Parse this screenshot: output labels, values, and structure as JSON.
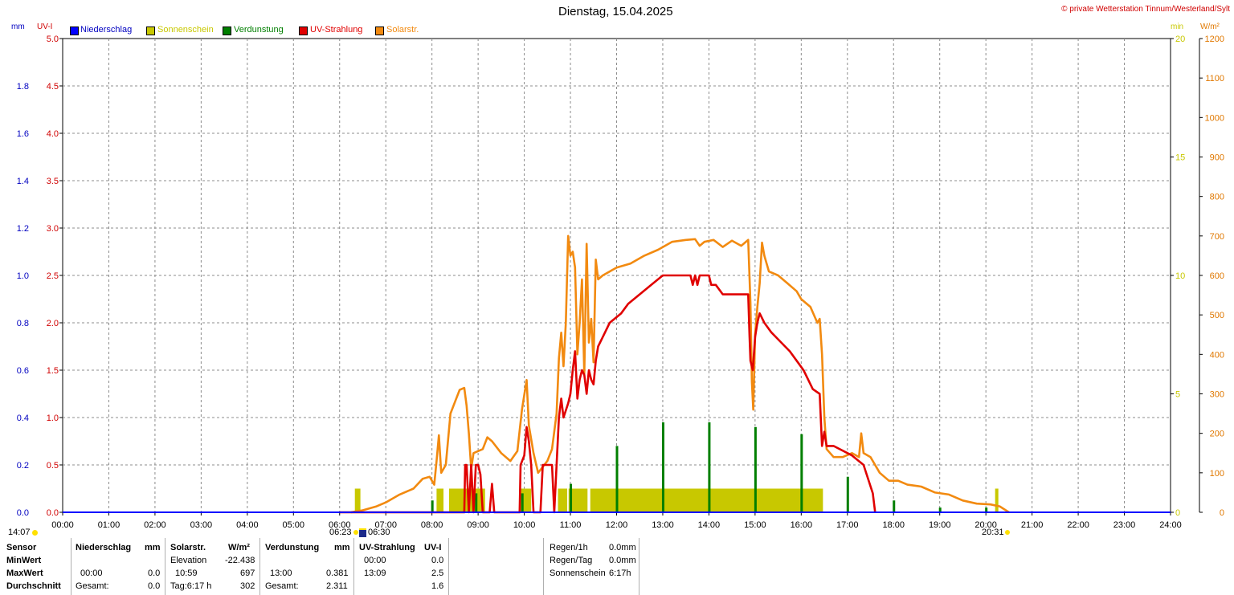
{
  "header": {
    "title": "Dienstag, 15.04.2025",
    "copyright": "© private Wetterstation Tinnum/Westerland/Sylt",
    "left_units": {
      "mm": "mm",
      "uvi": "UV-I"
    },
    "right_units": {
      "min": "min",
      "wm2": "W/m²"
    }
  },
  "colors": {
    "niederschlag": "#0000ff",
    "sonnenschein": "#c8c800",
    "verdunstung": "#007f00",
    "uv": "#e00000",
    "solar": "#f28a10",
    "mm_axis": "#0000c0",
    "uv_axis": "#d00000",
    "min_axis": "#c8c800",
    "wm2_axis": "#e07800"
  },
  "legend": [
    {
      "label": "Niederschlag",
      "color": "#0000ff",
      "text_color": "#0000c0"
    },
    {
      "label": "Sonnenschein",
      "color": "#c8c800",
      "text_color": "#c8c800"
    },
    {
      "label": "Verdunstung",
      "color": "#007f00",
      "text_color": "#007f00"
    },
    {
      "label": "UV-Strahlung",
      "color": "#e00000",
      "text_color": "#e00000"
    },
    {
      "label": "Solarstr.",
      "color": "#f28a10",
      "text_color": "#f28a10"
    }
  ],
  "chart_data": {
    "type": "line",
    "title": "Dienstag, 15.04.2025",
    "x_unit": "hours",
    "xlim": [
      0,
      24
    ],
    "x_tick_labels": [
      "00:00",
      "01:00",
      "02:00",
      "03:00",
      "04:00",
      "05:00",
      "06:00",
      "07:00",
      "08:00",
      "09:00",
      "10:00",
      "11:00",
      "12:00",
      "13:00",
      "14:00",
      "15:00",
      "16:00",
      "17:00",
      "18:00",
      "19:00",
      "20:00",
      "21:00",
      "22:00",
      "23:00",
      "24:00"
    ],
    "axes": {
      "mm": {
        "lim": [
          0,
          2.0
        ],
        "ticks": [
          "0.0",
          "0.2",
          "0.4",
          "0.6",
          "0.8",
          "1.0",
          "1.2",
          "1.4",
          "1.6",
          "1.8"
        ]
      },
      "uvi": {
        "lim": [
          0,
          5.0
        ],
        "ticks": [
          "0.0",
          "0.5",
          "1.0",
          "1.5",
          "2.0",
          "2.5",
          "3.0",
          "3.5",
          "4.0",
          "4.5",
          "5.0"
        ]
      },
      "min": {
        "lim": [
          0,
          20
        ],
        "ticks": [
          "0",
          "5",
          "10",
          "15",
          "20"
        ]
      },
      "wm2": {
        "lim": [
          0,
          1200
        ],
        "ticks": [
          "0",
          "100",
          "200",
          "300",
          "400",
          "500",
          "600",
          "700",
          "800",
          "900",
          "1000",
          "1100",
          "1200"
        ]
      }
    },
    "grid": true,
    "series": [
      {
        "name": "Solarstr.",
        "axis": "wm2",
        "points": [
          [
            6.25,
            0
          ],
          [
            6.5,
            5
          ],
          [
            6.8,
            15
          ],
          [
            7.0,
            25
          ],
          [
            7.3,
            45
          ],
          [
            7.6,
            60
          ],
          [
            7.8,
            85
          ],
          [
            7.95,
            90
          ],
          [
            8.05,
            70
          ],
          [
            8.1,
            130
          ],
          [
            8.15,
            195
          ],
          [
            8.2,
            100
          ],
          [
            8.3,
            120
          ],
          [
            8.4,
            250
          ],
          [
            8.5,
            280
          ],
          [
            8.6,
            310
          ],
          [
            8.7,
            315
          ],
          [
            8.75,
            270
          ],
          [
            8.8,
            200
          ],
          [
            8.85,
            110
          ],
          [
            8.9,
            150
          ],
          [
            9.0,
            155
          ],
          [
            9.1,
            160
          ],
          [
            9.2,
            190
          ],
          [
            9.3,
            180
          ],
          [
            9.5,
            150
          ],
          [
            9.7,
            130
          ],
          [
            9.85,
            155
          ],
          [
            9.95,
            260
          ],
          [
            10.05,
            335
          ],
          [
            10.1,
            220
          ],
          [
            10.2,
            150
          ],
          [
            10.3,
            100
          ],
          [
            10.4,
            115
          ],
          [
            10.5,
            130
          ],
          [
            10.6,
            160
          ],
          [
            10.7,
            250
          ],
          [
            10.75,
            390
          ],
          [
            10.8,
            455
          ],
          [
            10.85,
            370
          ],
          [
            10.9,
            480
          ],
          [
            10.95,
            700
          ],
          [
            11.0,
            650
          ],
          [
            11.05,
            660
          ],
          [
            11.1,
            620
          ],
          [
            11.15,
            400
          ],
          [
            11.2,
            480
          ],
          [
            11.25,
            590
          ],
          [
            11.3,
            350
          ],
          [
            11.35,
            680
          ],
          [
            11.4,
            430
          ],
          [
            11.45,
            490
          ],
          [
            11.5,
            380
          ],
          [
            11.55,
            640
          ],
          [
            11.6,
            590
          ],
          [
            11.7,
            600
          ],
          [
            11.85,
            610
          ],
          [
            12.0,
            620
          ],
          [
            12.3,
            630
          ],
          [
            12.6,
            650
          ],
          [
            12.9,
            665
          ],
          [
            13.2,
            685
          ],
          [
            13.5,
            690
          ],
          [
            13.7,
            692
          ],
          [
            13.8,
            675
          ],
          [
            13.9,
            685
          ],
          [
            14.1,
            690
          ],
          [
            14.3,
            672
          ],
          [
            14.5,
            688
          ],
          [
            14.7,
            675
          ],
          [
            14.85,
            690
          ],
          [
            14.9,
            530
          ],
          [
            14.93,
            330
          ],
          [
            14.96,
            260
          ],
          [
            15.0,
            450
          ],
          [
            15.05,
            520
          ],
          [
            15.1,
            580
          ],
          [
            15.15,
            683
          ],
          [
            15.2,
            650
          ],
          [
            15.3,
            610
          ],
          [
            15.5,
            600
          ],
          [
            15.7,
            580
          ],
          [
            15.9,
            560
          ],
          [
            16.0,
            540
          ],
          [
            16.2,
            520
          ],
          [
            16.35,
            480
          ],
          [
            16.4,
            490
          ],
          [
            16.45,
            400
          ],
          [
            16.5,
            240
          ],
          [
            16.55,
            160
          ],
          [
            16.7,
            140
          ],
          [
            16.9,
            140
          ],
          [
            17.1,
            150
          ],
          [
            17.25,
            140
          ],
          [
            17.3,
            200
          ],
          [
            17.35,
            150
          ],
          [
            17.5,
            140
          ],
          [
            17.7,
            100
          ],
          [
            17.9,
            80
          ],
          [
            18.1,
            80
          ],
          [
            18.3,
            70
          ],
          [
            18.6,
            65
          ],
          [
            18.9,
            50
          ],
          [
            19.2,
            45
          ],
          [
            19.5,
            30
          ],
          [
            19.8,
            22
          ],
          [
            20.1,
            20
          ],
          [
            20.3,
            15
          ],
          [
            20.5,
            0
          ]
        ]
      },
      {
        "name": "UV-Strahlung",
        "axis": "uvi",
        "points": [
          [
            6.0,
            0
          ],
          [
            8.7,
            0
          ],
          [
            8.72,
            0.5
          ],
          [
            8.75,
            0.5
          ],
          [
            8.8,
            0
          ],
          [
            8.85,
            0.5
          ],
          [
            8.9,
            0
          ],
          [
            8.95,
            0.5
          ],
          [
            9.0,
            0.5
          ],
          [
            9.05,
            0.4
          ],
          [
            9.1,
            0
          ],
          [
            9.2,
            0
          ],
          [
            9.25,
            0
          ],
          [
            9.3,
            0.3
          ],
          [
            9.35,
            0
          ],
          [
            9.9,
            0
          ],
          [
            9.92,
            0.5
          ],
          [
            10.0,
            0.6
          ],
          [
            10.05,
            0.9
          ],
          [
            10.1,
            0.75
          ],
          [
            10.15,
            0.5
          ],
          [
            10.2,
            0
          ],
          [
            10.35,
            0
          ],
          [
            10.4,
            0.5
          ],
          [
            10.6,
            0.5
          ],
          [
            10.65,
            0
          ],
          [
            10.7,
            0.5
          ],
          [
            10.75,
            1.0
          ],
          [
            10.8,
            1.2
          ],
          [
            10.85,
            1.0
          ],
          [
            10.95,
            1.15
          ],
          [
            11.0,
            1.25
          ],
          [
            11.05,
            1.5
          ],
          [
            11.1,
            1.7
          ],
          [
            11.15,
            1.2
          ],
          [
            11.2,
            1.4
          ],
          [
            11.25,
            1.5
          ],
          [
            11.3,
            1.45
          ],
          [
            11.35,
            1.25
          ],
          [
            11.4,
            1.5
          ],
          [
            11.45,
            1.4
          ],
          [
            11.5,
            1.35
          ],
          [
            11.55,
            1.6
          ],
          [
            11.6,
            1.75
          ],
          [
            11.7,
            1.85
          ],
          [
            11.85,
            2.0
          ],
          [
            12.1,
            2.1
          ],
          [
            12.25,
            2.2
          ],
          [
            12.5,
            2.3
          ],
          [
            12.75,
            2.4
          ],
          [
            13.0,
            2.5
          ],
          [
            13.6,
            2.5
          ],
          [
            13.65,
            2.4
          ],
          [
            13.7,
            2.5
          ],
          [
            13.75,
            2.4
          ],
          [
            13.8,
            2.5
          ],
          [
            14.0,
            2.5
          ],
          [
            14.05,
            2.4
          ],
          [
            14.15,
            2.4
          ],
          [
            14.3,
            2.3
          ],
          [
            14.85,
            2.3
          ],
          [
            14.88,
            1.85
          ],
          [
            14.9,
            1.6
          ],
          [
            14.95,
            1.5
          ],
          [
            15.0,
            1.85
          ],
          [
            15.05,
            2.0
          ],
          [
            15.1,
            2.1
          ],
          [
            15.2,
            2.0
          ],
          [
            15.35,
            1.9
          ],
          [
            15.55,
            1.8
          ],
          [
            15.75,
            1.7
          ],
          [
            15.9,
            1.6
          ],
          [
            16.05,
            1.5
          ],
          [
            16.25,
            1.3
          ],
          [
            16.4,
            1.25
          ],
          [
            16.45,
            0.7
          ],
          [
            16.5,
            0.85
          ],
          [
            16.55,
            0.7
          ],
          [
            16.7,
            0.7
          ],
          [
            17.1,
            0.6
          ],
          [
            17.35,
            0.5
          ],
          [
            17.55,
            0.2
          ],
          [
            17.6,
            0
          ]
        ]
      }
    ],
    "verdunstung_bars": [
      {
        "x": 8.0,
        "h_min": 0.5
      },
      {
        "x": 8.95,
        "h_min": 0.8
      },
      {
        "x": 9.95,
        "h_min": 0.8
      },
      {
        "x": 11.0,
        "h_min": 1.2
      },
      {
        "x": 12.0,
        "h_min": 2.8
      },
      {
        "x": 13.0,
        "h_min": 3.8
      },
      {
        "x": 14.0,
        "h_min": 3.8
      },
      {
        "x": 15.0,
        "h_min": 3.6
      },
      {
        "x": 16.0,
        "h_min": 3.3
      },
      {
        "x": 17.0,
        "h_min": 1.5
      },
      {
        "x": 18.0,
        "h_min": 0.5
      },
      {
        "x": 19.0,
        "h_min": 0.2
      },
      {
        "x": 20.0,
        "h_min": 0.2
      }
    ],
    "sonnenschein_blocks": [
      {
        "from": 6.33,
        "to": 6.45,
        "value_min": 1.0
      },
      {
        "from": 8.1,
        "to": 8.25,
        "value_min": 1.0
      },
      {
        "from": 8.37,
        "to": 9.15,
        "value_min": 1.0
      },
      {
        "from": 9.92,
        "to": 10.15,
        "value_min": 1.0
      },
      {
        "from": 10.73,
        "to": 10.93,
        "value_min": 1.0
      },
      {
        "from": 10.96,
        "to": 11.37,
        "value_min": 1.0
      },
      {
        "from": 11.43,
        "to": 16.47,
        "value_min": 1.0
      },
      {
        "from": 20.2,
        "to": 20.27,
        "value_min": 1.0
      }
    ]
  },
  "timeline_markers": {
    "left_time": "14:07",
    "sunrise": "06:23",
    "dawn": "06:30",
    "sunset": "20:31"
  },
  "footer": {
    "col_sensor": {
      "header": "Sensor",
      "rows": [
        "MinWert",
        "MaxWert",
        "Durchschnitt"
      ]
    },
    "col_niederschlag": {
      "header": "Niederschlag",
      "unit": "mm",
      "max_time": "00:00",
      "max_val": "0.0",
      "avg_label": "Gesamt:",
      "avg_val": "0.0"
    },
    "col_solar": {
      "header": "Solarstr.",
      "unit": "W/m²",
      "min_label": "Elevation",
      "min_val": "-22.438",
      "max_time": "10:59",
      "max_val": "697",
      "avg_label": "Tag:6:17 h",
      "avg_val": "302"
    },
    "col_verdunstung": {
      "header": "Verdunstung",
      "unit": "mm",
      "max_time": "13:00",
      "max_val": "0.381",
      "avg_label": "Gesamt:",
      "avg_val": "2.311"
    },
    "col_uv": {
      "header": "UV-Strahlung",
      "unit": "UV-I",
      "min_time": "00:00",
      "min_val": "0.0",
      "max_time": "13:09",
      "max_val": "2.5",
      "avg_val": "1.6"
    },
    "col_extra": {
      "rows": [
        {
          "label": "Regen/1h",
          "value": "0.0mm"
        },
        {
          "label": "Regen/Tag",
          "value": "0.0mm"
        },
        {
          "label": "Sonnenschein",
          "value": "6:17h"
        }
      ]
    }
  }
}
